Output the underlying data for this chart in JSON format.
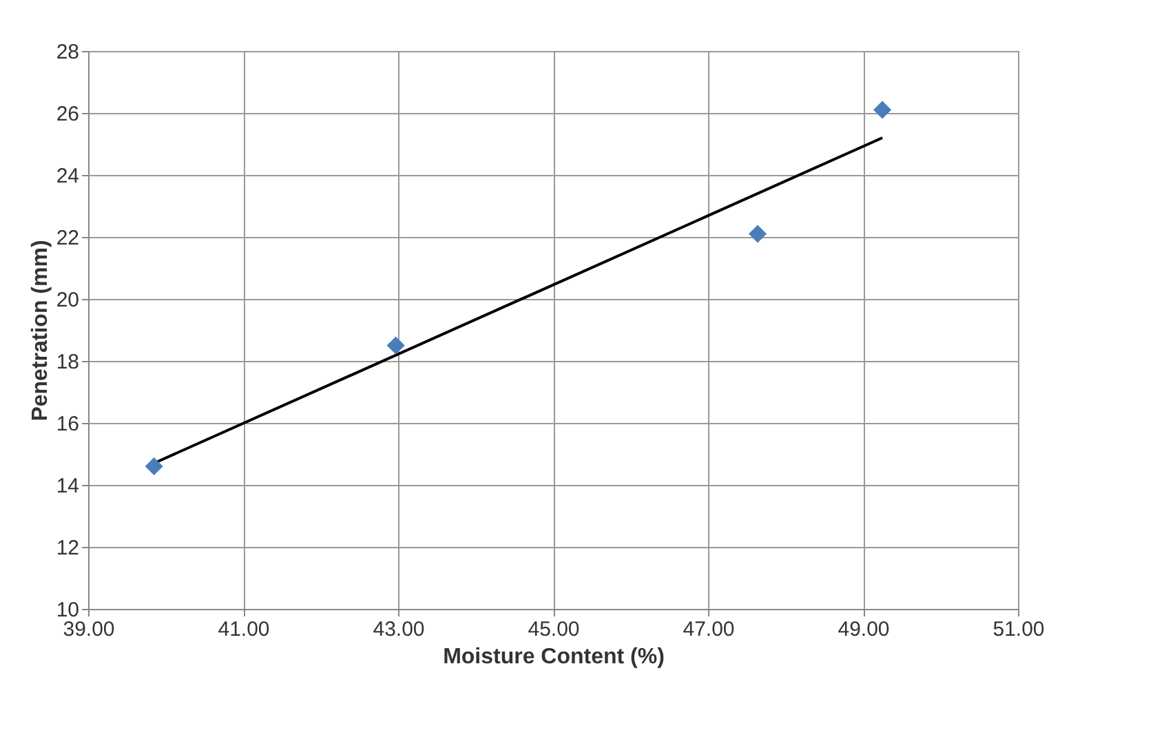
{
  "chart_data": {
    "type": "scatter",
    "xlabel": "Moisture Content (%)",
    "ylabel": "Penetration (mm)",
    "xlim": [
      39,
      51
    ],
    "xticks": [
      {
        "value": 39,
        "label": "39.00"
      },
      {
        "value": 41,
        "label": "41.00"
      },
      {
        "value": 43,
        "label": "43.00"
      },
      {
        "value": 45,
        "label": "45.00"
      },
      {
        "value": 47,
        "label": "47.00"
      },
      {
        "value": 49,
        "label": "49.00"
      },
      {
        "value": 51,
        "label": "51.00"
      }
    ],
    "ylim": [
      10,
      28
    ],
    "yticks": [
      10,
      12,
      14,
      16,
      18,
      20,
      22,
      24,
      26,
      28
    ],
    "grid": true,
    "series": [
      {
        "marker": "diamond",
        "color": "#4a7ebb",
        "x": [
          39.85,
          42.97,
          47.64,
          49.25
        ],
        "values": [
          14.6,
          18.5,
          22.1,
          26.1
        ]
      },
      {
        "type": "line",
        "marker": "none",
        "color": "#000000",
        "x": [
          39.85,
          49.25
        ],
        "values": [
          14.7,
          25.2
        ]
      }
    ]
  }
}
